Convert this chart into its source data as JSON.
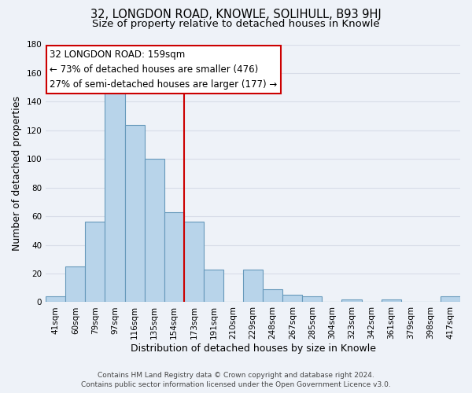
{
  "title": "32, LONGDON ROAD, KNOWLE, SOLIHULL, B93 9HJ",
  "subtitle": "Size of property relative to detached houses in Knowle",
  "xlabel": "Distribution of detached houses by size in Knowle",
  "ylabel": "Number of detached properties",
  "bar_labels": [
    "41sqm",
    "60sqm",
    "79sqm",
    "97sqm",
    "116sqm",
    "135sqm",
    "154sqm",
    "173sqm",
    "191sqm",
    "210sqm",
    "229sqm",
    "248sqm",
    "267sqm",
    "285sqm",
    "304sqm",
    "323sqm",
    "342sqm",
    "361sqm",
    "379sqm",
    "398sqm",
    "417sqm"
  ],
  "bar_heights": [
    4,
    25,
    56,
    146,
    124,
    100,
    63,
    56,
    23,
    0,
    23,
    9,
    5,
    4,
    0,
    2,
    0,
    2,
    0,
    0,
    4
  ],
  "bar_color": "#b8d4ea",
  "bar_edge_color": "#6699bb",
  "bar_width": 1.0,
  "ylim": [
    0,
    180
  ],
  "yticks": [
    0,
    20,
    40,
    60,
    80,
    100,
    120,
    140,
    160,
    180
  ],
  "vline_x": 6.5,
  "vline_color": "#cc0000",
  "annotation_title": "32 LONGDON ROAD: 159sqm",
  "annotation_line1": "← 73% of detached houses are smaller (476)",
  "annotation_line2": "27% of semi-detached houses are larger (177) →",
  "annotation_box_color": "#ffffff",
  "annotation_box_edge": "#cc0000",
  "footer1": "Contains HM Land Registry data © Crown copyright and database right 2024.",
  "footer2": "Contains public sector information licensed under the Open Government Licence v3.0.",
  "background_color": "#eef2f8",
  "grid_color": "#d8dde8",
  "title_fontsize": 10.5,
  "subtitle_fontsize": 9.5,
  "axis_label_fontsize": 9,
  "tick_fontsize": 7.5,
  "footer_fontsize": 6.5,
  "annotation_fontsize": 8.5
}
